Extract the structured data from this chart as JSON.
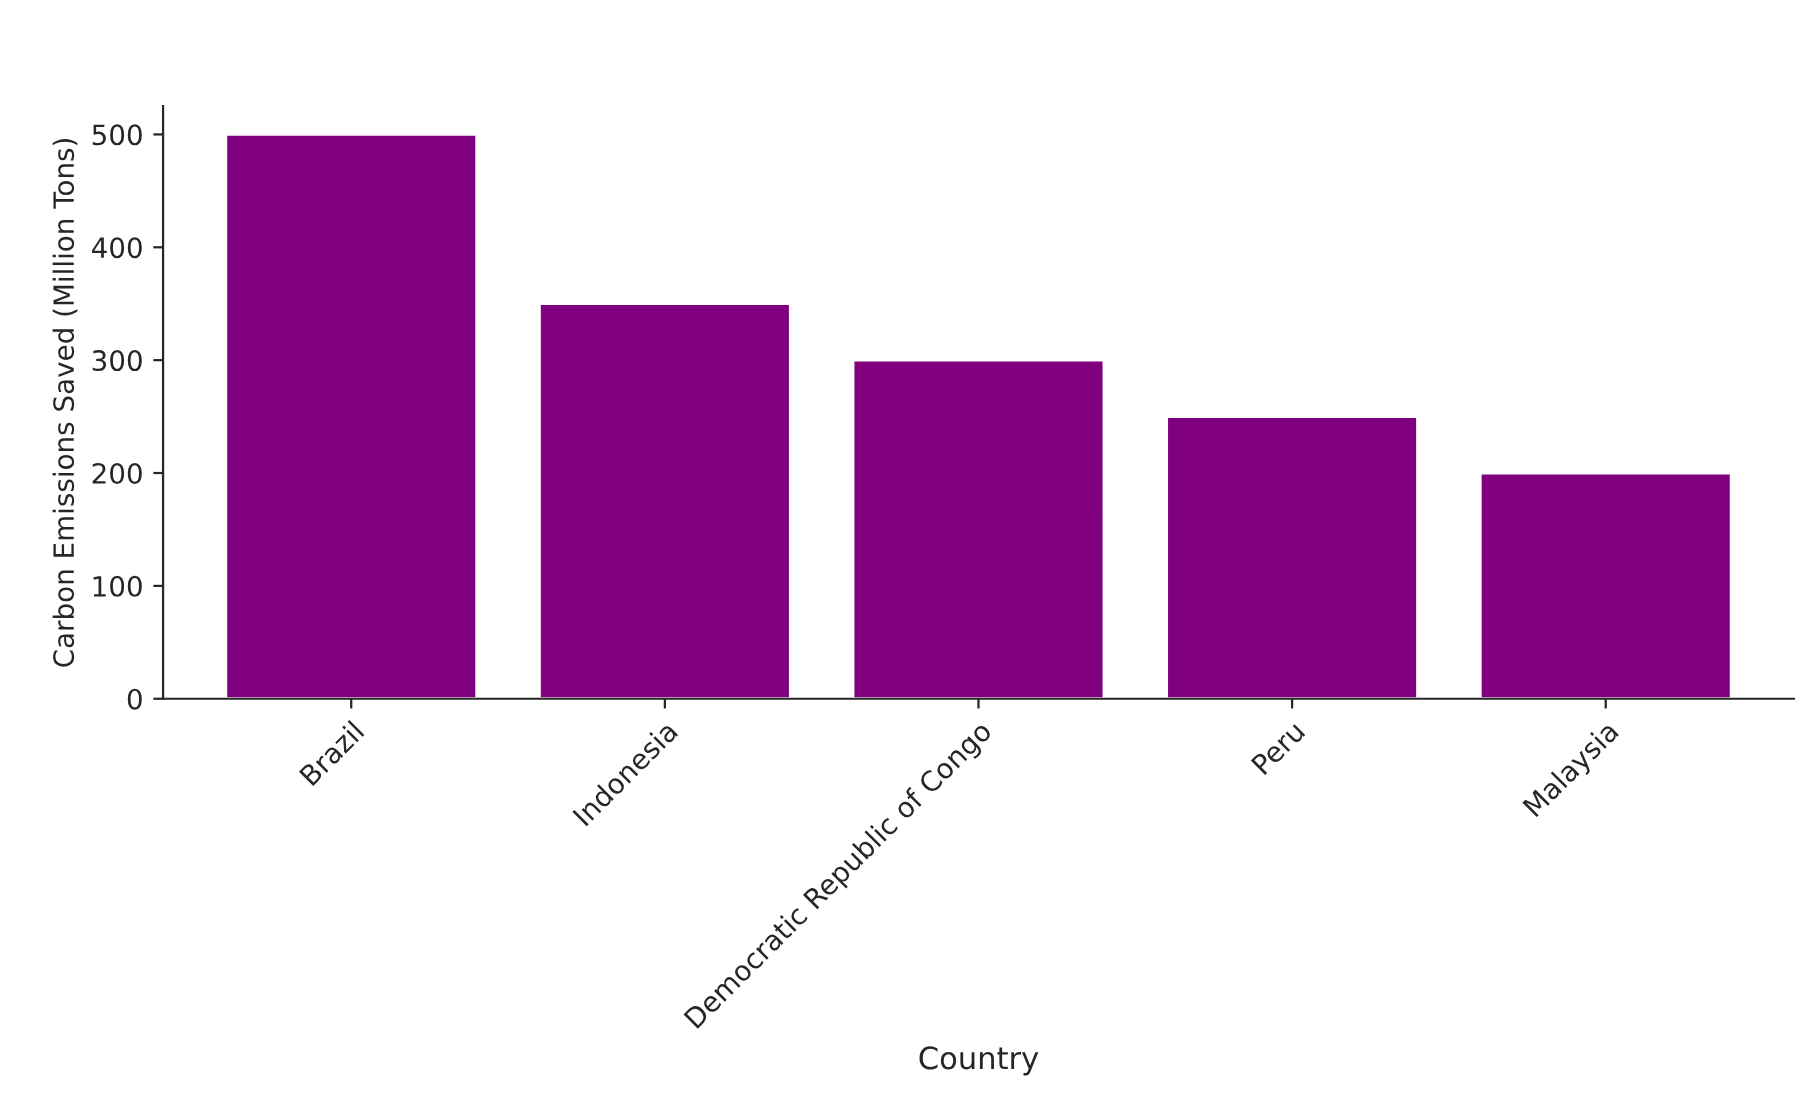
{
  "chart_data": {
    "type": "bar",
    "xlabel": "Country",
    "ylabel": "Carbon Emissions Saved (Million Tons)",
    "categories": [
      "Brazil",
      "Indonesia",
      "Democratic Republic of Congo",
      "Peru",
      "Malaysia"
    ],
    "values": [
      500,
      350,
      300,
      250,
      200
    ],
    "color": "#800080",
    "ylim": [
      0,
      525
    ],
    "yticks": [
      0,
      100,
      200,
      300,
      400,
      500
    ],
    "grid": false
  }
}
